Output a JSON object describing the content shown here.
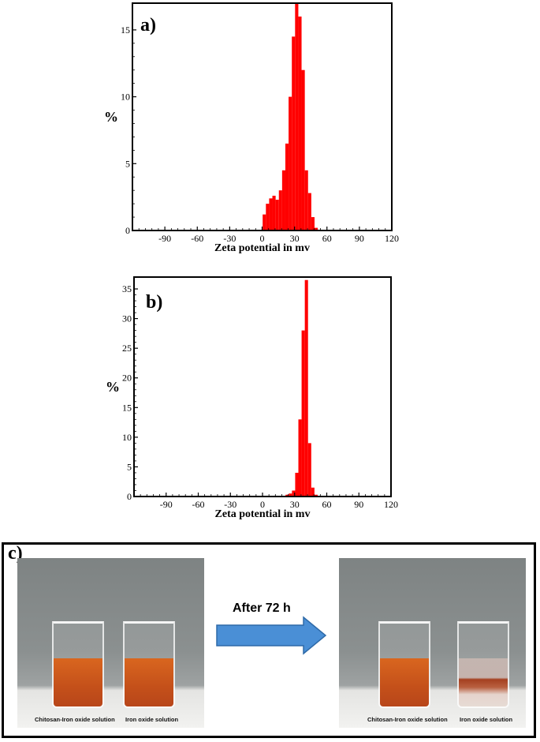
{
  "chart_data": [
    {
      "type": "bar",
      "panel_label": "a)",
      "xlabel": "Zeta potential in mv",
      "ylabel": "%",
      "xlim": [
        -120,
        120
      ],
      "ylim": [
        0,
        17
      ],
      "xticks": [
        "-90",
        "-60",
        "-30",
        "0",
        "30",
        "60",
        "90",
        "120"
      ],
      "yticks": [
        "0",
        "5",
        "10",
        "15"
      ],
      "bar_color": "#ff0000",
      "bin_width": 3,
      "x": [
        2,
        5,
        8,
        11,
        14,
        17,
        20,
        23,
        26,
        29,
        32,
        35,
        38,
        41,
        44,
        47,
        50
      ],
      "values": [
        1.2,
        2.0,
        2.4,
        2.6,
        2.3,
        3.0,
        4.5,
        6.5,
        10.0,
        14.5,
        17.0,
        16.0,
        12.0,
        4.5,
        2.8,
        1.0,
        0.2
      ]
    },
    {
      "type": "bar",
      "panel_label": "b)",
      "xlabel": "Zeta potential in mv",
      "ylabel": "%",
      "xlim": [
        -120,
        120
      ],
      "ylim": [
        0,
        37
      ],
      "xticks": [
        "-90",
        "-60",
        "-30",
        "0",
        "30",
        "60",
        "90",
        "120"
      ],
      "yticks": [
        "0",
        "5",
        "10",
        "15",
        "20",
        "25",
        "30",
        "35"
      ],
      "bar_color": "#ff0000",
      "bin_width": 3,
      "x": [
        20,
        23,
        26,
        29,
        32,
        35,
        38,
        41,
        44,
        47,
        50
      ],
      "values": [
        0.1,
        0.3,
        0.5,
        1.0,
        4.0,
        13.0,
        28.0,
        36.5,
        9.0,
        1.5,
        0.3
      ]
    }
  ],
  "panel_c": {
    "label": "c)",
    "arrow_text": "After 72 h",
    "arrow_color": "#4a8fd6",
    "photos": [
      {
        "left_caption": "Chitosan-Iron oxide solution",
        "right_caption": "Iron oxide solution"
      },
      {
        "left_caption": "Chitosan-Iron oxide solution",
        "right_caption": "Iron oxide solution"
      }
    ]
  }
}
